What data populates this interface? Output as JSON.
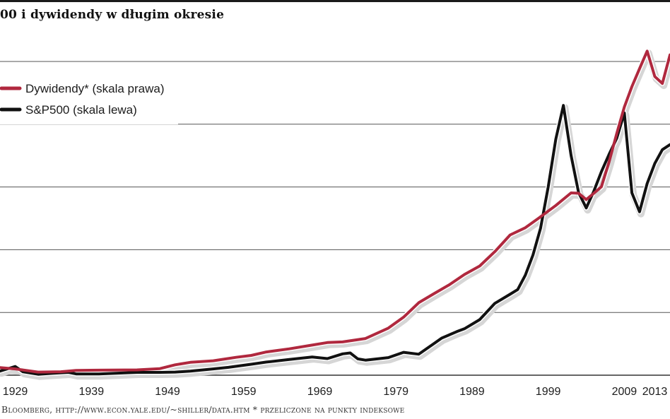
{
  "title": "00 i dywidendy w długim okresie",
  "source_note": "Bloomberg, http://www.econ.yale.edu/~shiller/data.htm  * przeliczone na punkty indeksowe",
  "colors": {
    "dividends": "#b0283e",
    "sp500": "#111111",
    "grid": "#555555",
    "halo": "#d6d6d6"
  },
  "chart_data": {
    "type": "line",
    "x_tick_labels": [
      "1929",
      "1939",
      "1949",
      "1959",
      "1969",
      "1979",
      "1989",
      "1999",
      "2009",
      "2013"
    ],
    "xlim": [
      1927,
      2015
    ],
    "ylim": [
      0,
      1
    ],
    "grid": "horizontal",
    "legend_position": "top-left",
    "series": [
      {
        "name": "Dywidendy* (skala prawa)",
        "x": [
          1927,
          1929,
          1932,
          1935,
          1937,
          1940,
          1945,
          1948,
          1950,
          1952,
          1955,
          1958,
          1960,
          1962,
          1965,
          1968,
          1970,
          1972,
          1975,
          1978,
          1980,
          1982,
          1984,
          1986,
          1988,
          1990,
          1992,
          1994,
          1996,
          1998,
          2000,
          2002,
          2003,
          2004,
          2005,
          2006,
          2007,
          2008,
          2009,
          2010,
          2011,
          2012,
          2013,
          2014,
          2015
        ],
        "y": [
          0.024,
          0.02,
          0.01,
          0.011,
          0.015,
          0.016,
          0.017,
          0.021,
          0.033,
          0.041,
          0.046,
          0.057,
          0.063,
          0.074,
          0.084,
          0.096,
          0.104,
          0.106,
          0.117,
          0.15,
          0.185,
          0.231,
          0.26,
          0.288,
          0.321,
          0.348,
          0.394,
          0.447,
          0.47,
          0.505,
          0.541,
          0.581,
          0.58,
          0.56,
          0.58,
          0.601,
          0.68,
          0.77,
          0.855,
          0.92,
          0.977,
          1.033,
          0.952,
          0.93,
          1.021
        ]
      },
      {
        "name": "S&P500 (skala lewa)",
        "x": [
          1927,
          1929,
          1930,
          1932,
          1934,
          1936,
          1937,
          1940,
          1945,
          1948,
          1950,
          1952,
          1955,
          1957,
          1960,
          1962,
          1965,
          1968,
          1970,
          1972,
          1973,
          1974,
          1975,
          1978,
          1980,
          1982,
          1984,
          1985,
          1987,
          1988,
          1990,
          1992,
          1994,
          1995,
          1996,
          1997,
          1998,
          1999,
          2000,
          2001,
          2002,
          2003,
          2004,
          2005,
          2006,
          2007,
          2008,
          2009,
          2010,
          2011,
          2012,
          2013,
          2014,
          2015
        ],
        "y": [
          0.013,
          0.028,
          0.011,
          0.003,
          0.006,
          0.009,
          0.004,
          0.004,
          0.009,
          0.009,
          0.01,
          0.013,
          0.02,
          0.025,
          0.035,
          0.042,
          0.05,
          0.058,
          0.053,
          0.068,
          0.071,
          0.052,
          0.048,
          0.056,
          0.073,
          0.067,
          0.101,
          0.118,
          0.139,
          0.148,
          0.177,
          0.229,
          0.258,
          0.273,
          0.319,
          0.383,
          0.469,
          0.599,
          0.752,
          0.86,
          0.701,
          0.582,
          0.533,
          0.587,
          0.649,
          0.704,
          0.755,
          0.836,
          0.581,
          0.521,
          0.611,
          0.675,
          0.719,
          0.735
        ]
      }
    ]
  }
}
